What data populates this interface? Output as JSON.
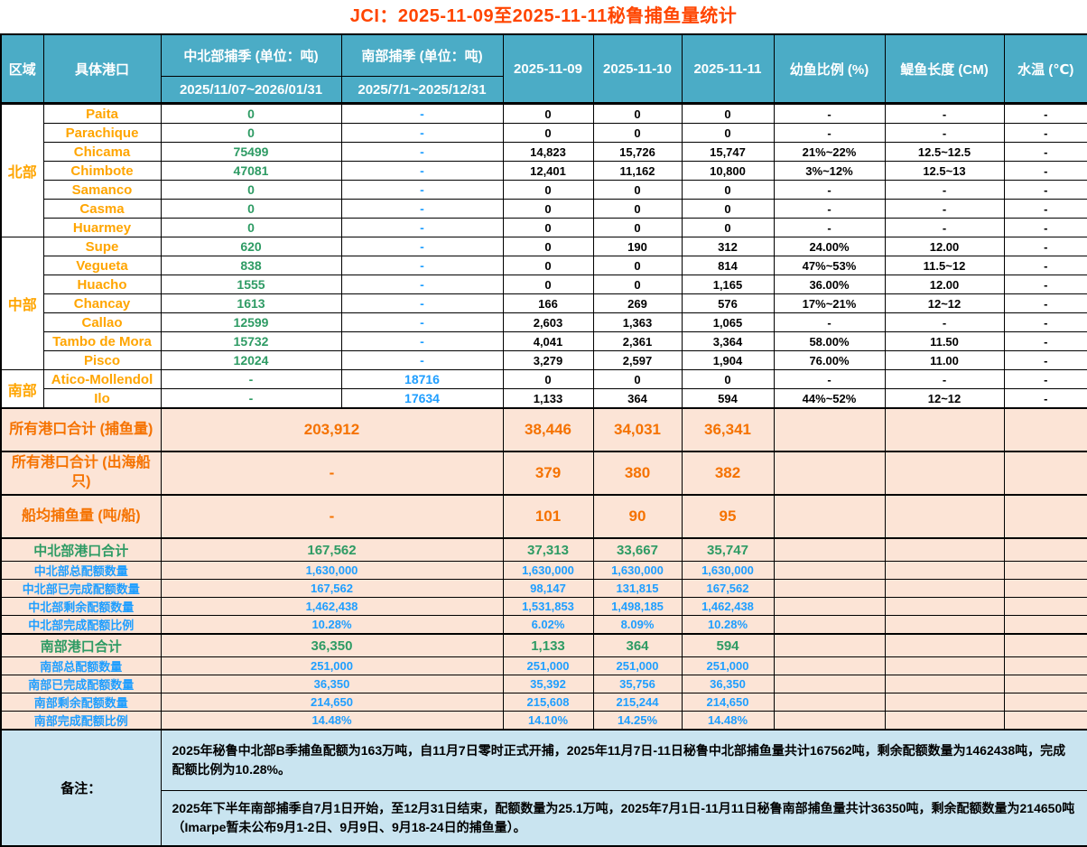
{
  "title": "JCI：2025-11-09至2025-11-11秘鲁捕鱼量统计",
  "header": {
    "region": "区域",
    "port": "具体港口",
    "north_central_season": "中北部捕季 (单位：吨)",
    "south_season": "南部捕季 (单位：吨)",
    "north_central_range": "2025/11/07~2026/01/31",
    "south_range": "2025/7/1~2025/12/31",
    "date1": "2025-11-09",
    "date2": "2025-11-10",
    "date3": "2025-11-11",
    "juvenile_ratio": "幼鱼比例 (%)",
    "anchovy_length": "鳀鱼长度 (CM)",
    "water_temp": "水温 (℃)"
  },
  "regions": [
    {
      "name": "北部",
      "ports": [
        {
          "name": "Paita",
          "nc": "0",
          "s": "-",
          "d1": "0",
          "d2": "0",
          "d3": "0",
          "juv": "-",
          "len": "-",
          "temp": "-"
        },
        {
          "name": "Parachique",
          "nc": "0",
          "s": "-",
          "d1": "0",
          "d2": "0",
          "d3": "0",
          "juv": "-",
          "len": "-",
          "temp": "-"
        },
        {
          "name": "Chicama",
          "nc": "75499",
          "s": "-",
          "d1": "14,823",
          "d2": "15,726",
          "d3": "15,747",
          "juv": "21%~22%",
          "len": "12.5~12.5",
          "temp": "-"
        },
        {
          "name": "Chimbote",
          "nc": "47081",
          "s": "-",
          "d1": "12,401",
          "d2": "11,162",
          "d3": "10,800",
          "juv": "3%~12%",
          "len": "12.5~13",
          "temp": "-"
        },
        {
          "name": "Samanco",
          "nc": "0",
          "s": "-",
          "d1": "0",
          "d2": "0",
          "d3": "0",
          "juv": "-",
          "len": "-",
          "temp": "-"
        },
        {
          "name": "Casma",
          "nc": "0",
          "s": "-",
          "d1": "0",
          "d2": "0",
          "d3": "0",
          "juv": "-",
          "len": "-",
          "temp": "-"
        },
        {
          "name": "Huarmey",
          "nc": "0",
          "s": "-",
          "d1": "0",
          "d2": "0",
          "d3": "0",
          "juv": "-",
          "len": "-",
          "temp": "-"
        }
      ]
    },
    {
      "name": "中部",
      "ports": [
        {
          "name": "Supe",
          "nc": "620",
          "s": "-",
          "d1": "0",
          "d2": "190",
          "d3": "312",
          "juv": "24.00%",
          "len": "12.00",
          "temp": "-"
        },
        {
          "name": "Vegueta",
          "nc": "838",
          "s": "-",
          "d1": "0",
          "d2": "0",
          "d3": "814",
          "juv": "47%~53%",
          "len": "11.5~12",
          "temp": "-"
        },
        {
          "name": "Huacho",
          "nc": "1555",
          "s": "-",
          "d1": "0",
          "d2": "0",
          "d3": "1,165",
          "juv": "36.00%",
          "len": "12.00",
          "temp": "-"
        },
        {
          "name": "Chancay",
          "nc": "1613",
          "s": "-",
          "d1": "166",
          "d2": "269",
          "d3": "576",
          "juv": "17%~21%",
          "len": "12~12",
          "temp": "-"
        },
        {
          "name": "Callao",
          "nc": "12599",
          "s": "-",
          "d1": "2,603",
          "d2": "1,363",
          "d3": "1,065",
          "juv": "-",
          "len": "-",
          "temp": "-"
        },
        {
          "name": "Tambo de Mora",
          "nc": "15732",
          "s": "-",
          "d1": "4,041",
          "d2": "2,361",
          "d3": "3,364",
          "juv": "58.00%",
          "len": "11.50",
          "temp": "-"
        },
        {
          "name": "Pisco",
          "nc": "12024",
          "s": "-",
          "d1": "3,279",
          "d2": "2,597",
          "d3": "1,904",
          "juv": "76.00%",
          "len": "11.00",
          "temp": "-"
        }
      ]
    },
    {
      "name": "南部",
      "ports": [
        {
          "name": "Atico-Mollendol",
          "nc": "-",
          "s": "18716",
          "d1": "0",
          "d2": "0",
          "d3": "0",
          "juv": "-",
          "len": "-",
          "temp": "-"
        },
        {
          "name": "Ilo",
          "nc": "-",
          "s": "17634",
          "d1": "1,133",
          "d2": "364",
          "d3": "594",
          "juv": "44%~52%",
          "len": "12~12",
          "temp": "-"
        }
      ]
    }
  ],
  "summary_rows": [
    {
      "label": "所有港口合计 (捕鱼量)",
      "season": "203,912",
      "d1": "38,446",
      "d2": "34,031",
      "d3": "36,341"
    },
    {
      "label": "所有港口合计 (出海船只)",
      "season": "-",
      "d1": "379",
      "d2": "380",
      "d3": "382"
    },
    {
      "label": "船均捕鱼量 (吨/船)",
      "season": "-",
      "d1": "101",
      "d2": "90",
      "d3": "95"
    }
  ],
  "quota_rows": [
    {
      "label": "中北部港口合计",
      "season": "167,562",
      "d1": "37,313",
      "d2": "33,667",
      "d3": "35,747",
      "style": "green",
      "total": true
    },
    {
      "label": "中北部总配额数量",
      "season": "1,630,000",
      "d1": "1,630,000",
      "d2": "1,630,000",
      "d3": "1,630,000",
      "style": "blue",
      "total": false
    },
    {
      "label": "中北部已完成配额数量",
      "season": "167,562",
      "d1": "98,147",
      "d2": "131,815",
      "d3": "167,562",
      "style": "blue",
      "total": false
    },
    {
      "label": "中北部剩余配额数量",
      "season": "1,462,438",
      "d1": "1,531,853",
      "d2": "1,498,185",
      "d3": "1,462,438",
      "style": "blue",
      "total": false
    },
    {
      "label": "中北部完成配额比例",
      "season": "10.28%",
      "d1": "6.02%",
      "d2": "8.09%",
      "d3": "10.28%",
      "style": "blue",
      "total": false
    },
    {
      "label": "南部港口合计",
      "season": "36,350",
      "d1": "1,133",
      "d2": "364",
      "d3": "594",
      "style": "green",
      "total": true
    },
    {
      "label": "南部总配额数量",
      "season": "251,000",
      "d1": "251,000",
      "d2": "251,000",
      "d3": "251,000",
      "style": "blue",
      "total": false
    },
    {
      "label": "南部已完成配额数量",
      "season": "36,350",
      "d1": "35,392",
      "d2": "35,756",
      "d3": "36,350",
      "style": "blue",
      "total": false
    },
    {
      "label": "南部剩余配额数量",
      "season": "214,650",
      "d1": "215,608",
      "d2": "215,244",
      "d3": "214,650",
      "style": "blue",
      "total": false
    },
    {
      "label": "南部完成配额比例",
      "season": "14.48%",
      "d1": "14.10%",
      "d2": "14.25%",
      "d3": "14.48%",
      "style": "blue",
      "total": false
    }
  ],
  "notes": {
    "label": "备注：",
    "items": [
      "2025年秘鲁中北部B季捕鱼配额为163万吨，自11月7日零时正式开捕，2025年11月7日-11日秘鲁中北部捕鱼量共计167562吨，剩余配额数量为1462438吨，完成配额比例为10.28%。",
      "2025年下半年南部捕季自7月1日开始，至12月31日结束，配额数量为25.1万吨，2025年7月1日-11月11日秘鲁南部捕鱼量共计36350吨，剩余配额数量为214650吨（Imarpe暂未公布9月1-2日、9月9日、9月18-24日的捕鱼量）。"
    ]
  },
  "colors": {
    "header_teal": "#4BACC6",
    "title_orange_red": "#FF4500",
    "port_orange": "#FFA500",
    "summary_orange": "#F57200",
    "value_green": "#2E9B64",
    "value_blue": "#1E9EFF",
    "summary_bg_peach": "#FCE4D6",
    "notes_bg_blue": "#C9E4F0"
  }
}
